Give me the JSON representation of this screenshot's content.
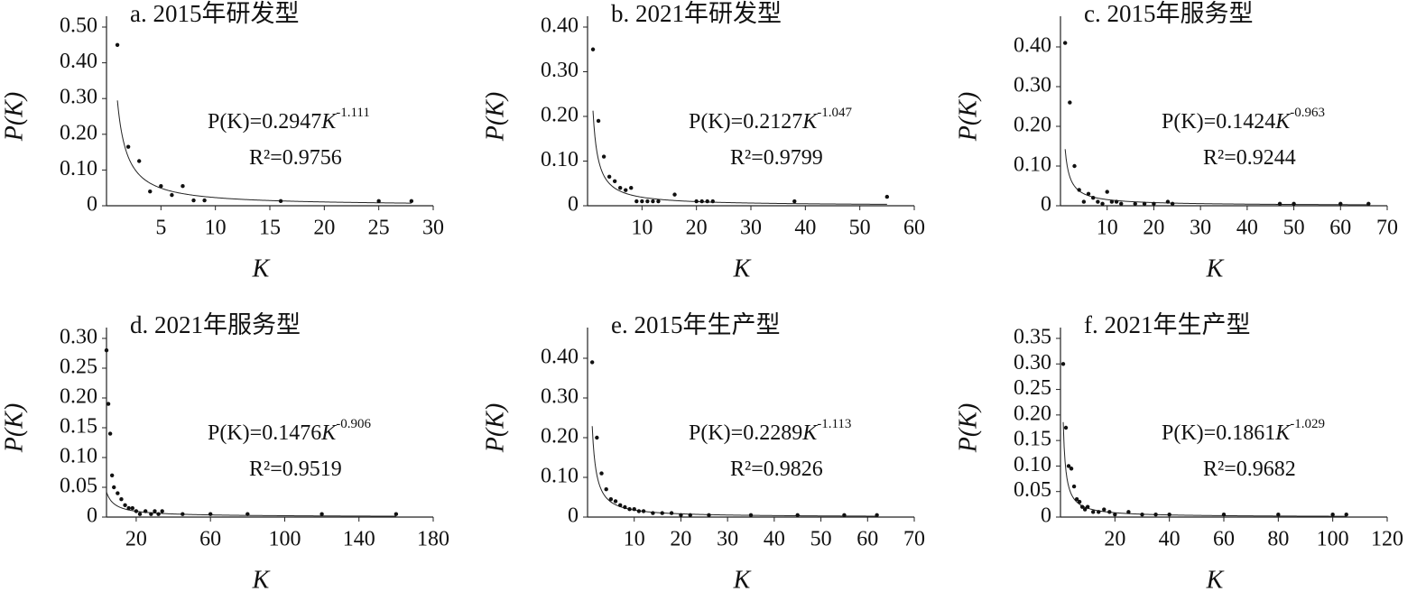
{
  "chart_data": [
    {
      "type": "scatter",
      "title": "a. 2015年研发型",
      "x_label": "K",
      "y_label": "P(K)",
      "x": [
        1,
        2,
        3,
        4,
        5,
        6,
        7,
        8,
        9,
        16,
        25,
        28
      ],
      "values": [
        0.45,
        0.165,
        0.125,
        0.04,
        0.055,
        0.03,
        0.055,
        0.015,
        0.015,
        0.013,
        0.013,
        0.013
      ],
      "xlim": [
        0,
        30
      ],
      "ylim": [
        0,
        0.5
      ],
      "xticks": [
        5,
        10,
        15,
        20,
        25,
        30
      ],
      "yticks": [
        0,
        {
          "value": 0.1,
          "label": "0.10"
        },
        {
          "value": 0.2,
          "label": "0.20"
        },
        {
          "value": 0.3,
          "label": "0.30"
        },
        {
          "value": 0.4,
          "label": "0.40"
        },
        {
          "value": 0.5,
          "label": "0.50"
        }
      ],
      "fit": {
        "lhs": "P(K)=",
        "coef": 0.2947,
        "var": "K",
        "exponent": -1.111,
        "r2_lhs": "R²=",
        "r2": 0.9756
      }
    },
    {
      "type": "scatter",
      "title": "b. 2021年研发型",
      "x_label": "K",
      "y_label": "P(K)",
      "x": [
        1,
        2,
        3,
        4,
        5,
        6,
        7,
        8,
        9,
        10,
        11,
        12,
        13,
        16,
        20,
        21,
        22,
        23,
        38,
        55
      ],
      "values": [
        0.35,
        0.19,
        0.11,
        0.065,
        0.055,
        0.04,
        0.035,
        0.04,
        0.01,
        0.01,
        0.01,
        0.01,
        0.01,
        0.025,
        0.01,
        0.01,
        0.01,
        0.01,
        0.01,
        0.02
      ],
      "xlim": [
        0,
        60
      ],
      "ylim": [
        0,
        0.4
      ],
      "xticks": [
        10,
        20,
        30,
        40,
        50,
        60
      ],
      "yticks": [
        0,
        {
          "value": 0.1,
          "label": "0.10"
        },
        {
          "value": 0.2,
          "label": "0.20"
        },
        {
          "value": 0.3,
          "label": "0.30"
        },
        {
          "value": 0.4,
          "label": "0.40"
        }
      ],
      "fit": {
        "lhs": "P(K)=",
        "coef": 0.2127,
        "var": "K",
        "exponent": -1.047,
        "r2_lhs": "R²=",
        "r2": 0.9799
      }
    },
    {
      "type": "scatter",
      "title": "c. 2015年服务型",
      "x_label": "K",
      "y_label": "P(K)",
      "x": [
        1,
        2,
        3,
        4,
        5,
        6,
        7,
        8,
        9,
        10,
        11,
        12,
        13,
        16,
        18,
        20,
        23,
        24,
        47,
        50,
        60,
        66
      ],
      "values": [
        0.41,
        0.26,
        0.1,
        0.04,
        0.01,
        0.03,
        0.02,
        0.01,
        0.005,
        0.035,
        0.01,
        0.01,
        0.005,
        0.005,
        0.005,
        0.005,
        0.01,
        0.005,
        0.005,
        0.005,
        0.005,
        0.005
      ],
      "xlim": [
        0,
        70
      ],
      "ylim": [
        0,
        0.45
      ],
      "xticks": [
        10,
        20,
        30,
        40,
        50,
        60,
        70
      ],
      "yticks": [
        0,
        {
          "value": 0.1,
          "label": "0.10"
        },
        {
          "value": 0.2,
          "label": "0.20"
        },
        {
          "value": 0.3,
          "label": "0.30"
        },
        {
          "value": 0.4,
          "label": "0.40"
        }
      ],
      "fit": {
        "lhs": "P(K)=",
        "coef": 0.1424,
        "var": "K",
        "exponent": -0.963,
        "r2_lhs": "R²=",
        "r2": 0.9244
      }
    },
    {
      "type": "scatter",
      "title": "d. 2021年服务型",
      "x_label": "K",
      "y_label": "P(K)",
      "x": [
        4,
        5,
        6,
        7,
        8,
        10,
        12,
        14,
        16,
        18,
        20,
        22,
        25,
        28,
        30,
        32,
        34,
        45,
        60,
        80,
        120,
        160
      ],
      "values": [
        0.28,
        0.19,
        0.14,
        0.07,
        0.05,
        0.04,
        0.03,
        0.02,
        0.015,
        0.015,
        0.01,
        0.005,
        0.01,
        0.005,
        0.01,
        0.005,
        0.01,
        0.005,
        0.005,
        0.005,
        0.005,
        0.005
      ],
      "xlim": [
        4,
        180
      ],
      "ylim": [
        0,
        0.3
      ],
      "xticks": [
        20,
        60,
        100,
        140,
        180
      ],
      "yticks": [
        0,
        {
          "value": 0.05,
          "label": "0.05"
        },
        {
          "value": 0.1,
          "label": "0.10"
        },
        {
          "value": 0.15,
          "label": "0.15"
        },
        {
          "value": 0.2,
          "label": "0.20"
        },
        {
          "value": 0.25,
          "label": "0.25"
        },
        {
          "value": 0.3,
          "label": "0.30"
        }
      ],
      "fit": {
        "lhs": "P(K)=",
        "coef": 0.1476,
        "var": "K",
        "exponent": -0.906,
        "r2_lhs": "R²=",
        "r2": 0.9519
      }
    },
    {
      "type": "scatter",
      "title": "e. 2015年生产型",
      "x_label": "K",
      "y_label": "P(K)",
      "x": [
        1,
        2,
        3,
        4,
        5,
        6,
        7,
        8,
        9,
        10,
        11,
        12,
        14,
        16,
        18,
        20,
        22,
        26,
        35,
        45,
        55,
        62
      ],
      "values": [
        0.39,
        0.2,
        0.11,
        0.07,
        0.045,
        0.04,
        0.03,
        0.025,
        0.02,
        0.02,
        0.015,
        0.015,
        0.01,
        0.01,
        0.01,
        0.005,
        0.005,
        0.005,
        0.005,
        0.005,
        0.005,
        0.005
      ],
      "xlim": [
        0,
        70
      ],
      "ylim": [
        0,
        0.45
      ],
      "xticks": [
        10,
        20,
        30,
        40,
        50,
        60,
        70
      ],
      "yticks": [
        0,
        {
          "value": 0.1,
          "label": "0.10"
        },
        {
          "value": 0.2,
          "label": "0.20"
        },
        {
          "value": 0.3,
          "label": "0.30"
        },
        {
          "value": 0.4,
          "label": "0.40"
        }
      ],
      "fit": {
        "lhs": "P(K)=",
        "coef": 0.2289,
        "var": "K",
        "exponent": -1.113,
        "r2_lhs": "R²=",
        "r2": 0.9826
      }
    },
    {
      "type": "scatter",
      "title": "f. 2021年生产型",
      "x_label": "K",
      "y_label": "P(K)",
      "x": [
        1,
        2,
        3,
        4,
        5,
        6,
        7,
        8,
        9,
        10,
        12,
        14,
        16,
        18,
        20,
        25,
        30,
        35,
        40,
        60,
        80,
        100,
        105
      ],
      "values": [
        0.3,
        0.175,
        0.1,
        0.095,
        0.06,
        0.035,
        0.03,
        0.02,
        0.015,
        0.02,
        0.01,
        0.01,
        0.015,
        0.01,
        0.005,
        0.01,
        0.005,
        0.005,
        0.005,
        0.005,
        0.005,
        0.005,
        0.005
      ],
      "xlim": [
        0,
        120
      ],
      "ylim": [
        0,
        0.35
      ],
      "xticks": [
        20,
        40,
        60,
        80,
        100,
        120
      ],
      "yticks": [
        0,
        {
          "value": 0.05,
          "label": "0.05"
        },
        {
          "value": 0.1,
          "label": "0.10"
        },
        {
          "value": 0.15,
          "label": "0.15"
        },
        {
          "value": 0.2,
          "label": "0.20"
        },
        {
          "value": 0.25,
          "label": "0.25"
        },
        {
          "value": 0.3,
          "label": "0.30"
        },
        {
          "value": 0.35,
          "label": "0.35"
        }
      ],
      "fit": {
        "lhs": "P(K)=",
        "coef": 0.1861,
        "var": "K",
        "exponent": -1.029,
        "r2_lhs": "R²=",
        "r2": 0.9682
      }
    }
  ]
}
